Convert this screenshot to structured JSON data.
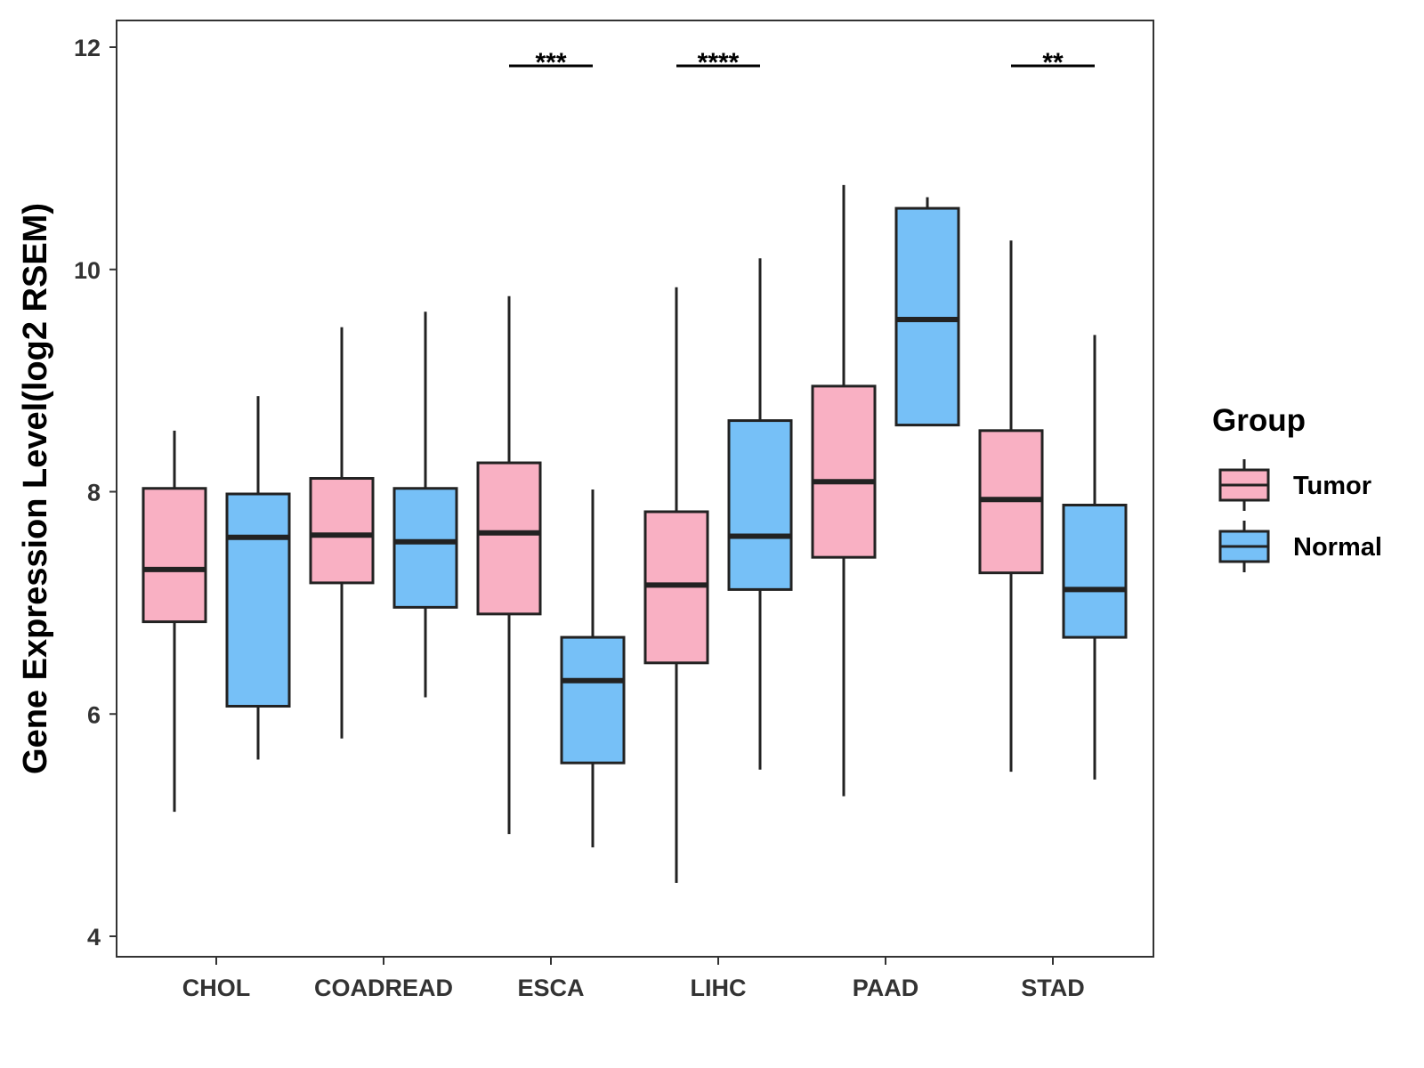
{
  "chart_data": {
    "type": "boxplot",
    "title": "",
    "xlabel": "",
    "ylabel": "Gene Expression Level(log2 RSEM)",
    "ylim": [
      3.8,
      12.25
    ],
    "yticks": [
      4,
      6,
      8,
      10,
      12
    ],
    "grid": false,
    "legend": {
      "title": "Group",
      "position": "right"
    },
    "categories": [
      "CHOL",
      "COADREAD",
      "ESCA",
      "LIHC",
      "PAAD",
      "STAD"
    ],
    "series": [
      {
        "name": "Tumor",
        "color": "#F9B0C3",
        "boxes": [
          {
            "min": 5.12,
            "q1": 6.83,
            "median": 7.3,
            "q3": 8.03,
            "max": 8.55
          },
          {
            "min": 5.78,
            "q1": 7.18,
            "median": 7.61,
            "q3": 8.12,
            "max": 9.48
          },
          {
            "min": 4.92,
            "q1": 6.9,
            "median": 7.63,
            "q3": 8.26,
            "max": 9.76
          },
          {
            "min": 4.48,
            "q1": 6.46,
            "median": 7.16,
            "q3": 7.82,
            "max": 9.84
          },
          {
            "min": 5.26,
            "q1": 7.41,
            "median": 8.09,
            "q3": 8.95,
            "max": 10.76
          },
          {
            "min": 5.48,
            "q1": 7.27,
            "median": 7.93,
            "q3": 8.55,
            "max": 10.26
          }
        ]
      },
      {
        "name": "Normal",
        "color": "#76C0F7",
        "boxes": [
          {
            "min": 5.59,
            "q1": 6.07,
            "median": 7.59,
            "q3": 7.98,
            "max": 8.86
          },
          {
            "min": 6.15,
            "q1": 6.96,
            "median": 7.55,
            "q3": 8.03,
            "max": 9.62
          },
          {
            "min": 4.8,
            "q1": 5.56,
            "median": 6.3,
            "q3": 6.69,
            "max": 8.02
          },
          {
            "min": 5.5,
            "q1": 7.12,
            "median": 7.6,
            "q3": 8.64,
            "max": 10.1
          },
          {
            "min": 8.6,
            "q1": 8.6,
            "median": 9.55,
            "q3": 10.55,
            "max": 10.65
          },
          {
            "min": 5.41,
            "q1": 6.69,
            "median": 7.12,
            "q3": 7.88,
            "max": 9.41
          }
        ]
      }
    ],
    "annotations": [
      {
        "category": "ESCA",
        "label": "***"
      },
      {
        "category": "LIHC",
        "label": "****"
      },
      {
        "category": "STAD",
        "label": "**"
      }
    ]
  }
}
